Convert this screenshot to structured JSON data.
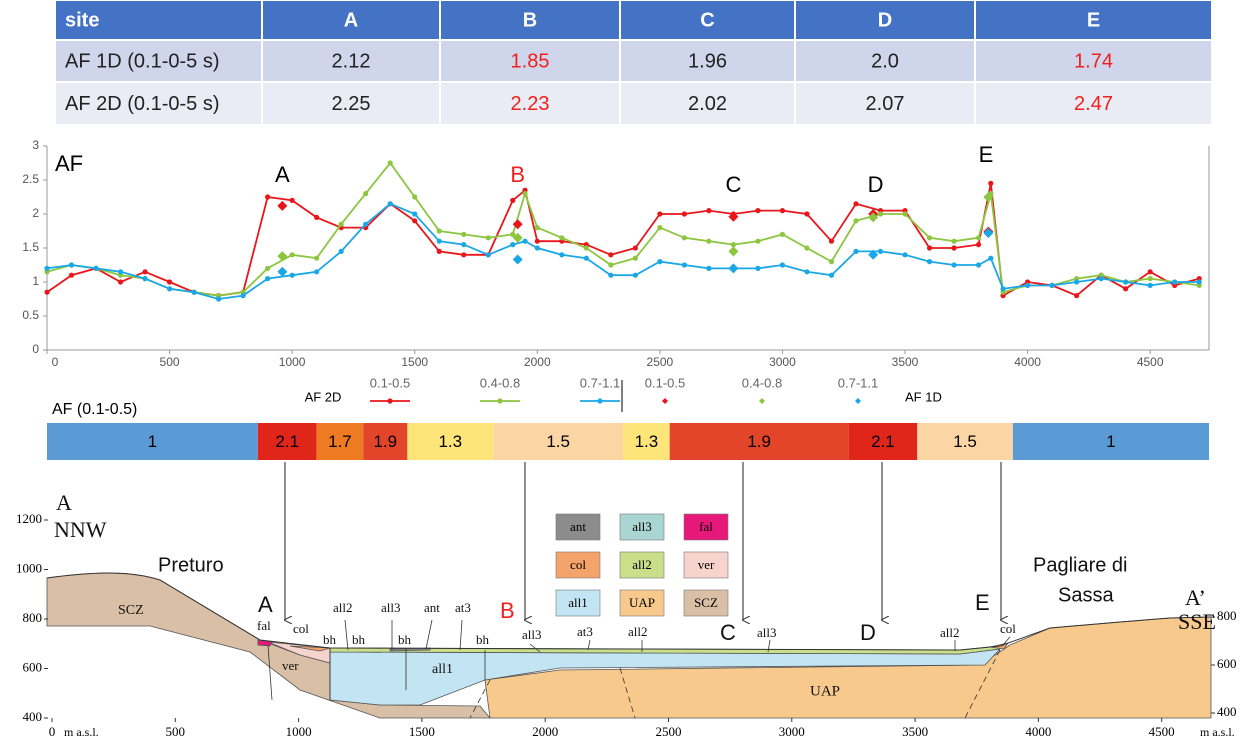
{
  "table": {
    "header": [
      "site",
      "A",
      "B",
      "C",
      "D",
      "E"
    ],
    "rows": [
      [
        "AF 1D (0.1-0-5 s)",
        "2.12",
        "1.85",
        "1.96",
        "2.0",
        "1.74"
      ],
      [
        "AF 2D (0.1-0-5 s)",
        "2.25",
        "2.23",
        "2.02",
        "2.07",
        "2.47"
      ]
    ],
    "highlight": {
      "columns": [
        2,
        5
      ],
      "color": "#f0201c"
    }
  },
  "chart_data": [
    {
      "type": "line",
      "title": "AF",
      "x": [
        0,
        100,
        200,
        300,
        400,
        500,
        600,
        700,
        800,
        900,
        1000,
        1100,
        1200,
        1300,
        1400,
        1500,
        1600,
        1700,
        1800,
        1900,
        1950,
        2000,
        2100,
        2200,
        2300,
        2400,
        2500,
        2600,
        2700,
        2800,
        2900,
        3000,
        3100,
        3200,
        3300,
        3400,
        3500,
        3600,
        3700,
        3800,
        3850,
        3900,
        4000,
        4100,
        4200,
        4300,
        4400,
        4500,
        4600,
        4700
      ],
      "legend_groups": [
        "AF 2D",
        "AF 1D"
      ],
      "series": [
        {
          "name": "0.1-0.5",
          "group": 0,
          "style": "line",
          "color": "#e8161b",
          "values": [
            0.85,
            1.1,
            1.2,
            1.0,
            1.15,
            1.0,
            0.85,
            0.8,
            0.85,
            2.25,
            2.2,
            1.95,
            1.8,
            1.8,
            2.15,
            1.9,
            1.45,
            1.4,
            1.4,
            2.2,
            2.35,
            1.6,
            1.6,
            1.55,
            1.4,
            1.5,
            2.0,
            2.0,
            2.05,
            2.0,
            2.05,
            2.05,
            2.0,
            1.6,
            2.15,
            2.05,
            2.05,
            1.5,
            1.5,
            1.55,
            2.45,
            0.8,
            1.0,
            0.95,
            0.8,
            1.1,
            0.9,
            1.15,
            0.95,
            1.05
          ]
        },
        {
          "name": "0.4-0.8",
          "group": 0,
          "style": "line",
          "color": "#8cc63f",
          "values": [
            1.15,
            1.25,
            1.2,
            1.1,
            1.05,
            0.9,
            0.85,
            0.8,
            0.85,
            1.2,
            1.4,
            1.35,
            1.85,
            2.3,
            2.75,
            2.25,
            1.75,
            1.7,
            1.65,
            1.7,
            2.3,
            1.8,
            1.65,
            1.5,
            1.25,
            1.35,
            1.8,
            1.65,
            1.6,
            1.55,
            1.6,
            1.7,
            1.5,
            1.3,
            1.9,
            2.0,
            2.0,
            1.65,
            1.6,
            1.65,
            2.3,
            0.85,
            0.95,
            0.95,
            1.05,
            1.1,
            1.0,
            1.05,
            1.0,
            0.95
          ]
        },
        {
          "name": "0.7-1.1",
          "group": 0,
          "style": "line",
          "color": "#1aa7e6",
          "values": [
            1.2,
            1.25,
            1.2,
            1.15,
            1.05,
            0.9,
            0.85,
            0.75,
            0.8,
            1.05,
            1.1,
            1.15,
            1.45,
            1.85,
            2.15,
            2.0,
            1.6,
            1.55,
            1.4,
            1.55,
            1.6,
            1.5,
            1.4,
            1.35,
            1.1,
            1.1,
            1.3,
            1.25,
            1.2,
            1.2,
            1.2,
            1.25,
            1.15,
            1.1,
            1.45,
            1.45,
            1.4,
            1.3,
            1.25,
            1.25,
            1.35,
            0.9,
            0.95,
            0.95,
            1.0,
            1.05,
            1.0,
            0.95,
            1.0,
            1.0
          ]
        },
        {
          "name": "0.1-0.5",
          "group": 1,
          "style": "points",
          "color": "#e8161b",
          "x": [
            960,
            1920,
            2800,
            3370,
            3840
          ],
          "values": [
            2.12,
            1.85,
            1.96,
            2.0,
            1.74
          ]
        },
        {
          "name": "0.4-0.8",
          "group": 1,
          "style": "points",
          "color": "#8cc63f",
          "x": [
            960,
            1920,
            2800,
            3370,
            3840
          ],
          "values": [
            1.38,
            1.65,
            1.45,
            1.95,
            2.25
          ]
        },
        {
          "name": "0.7-1.1",
          "group": 1,
          "style": "points",
          "color": "#1aa7e6",
          "x": [
            960,
            1920,
            2800,
            3370,
            3840
          ],
          "values": [
            1.15,
            1.33,
            1.2,
            1.4,
            1.72
          ]
        }
      ],
      "annotations": [
        {
          "text": "A",
          "x": 960,
          "color": "#000000"
        },
        {
          "text": "B",
          "x": 1920,
          "color": "#f0201c"
        },
        {
          "text": "C",
          "x": 2800,
          "color": "#000000"
        },
        {
          "text": "D",
          "x": 3380,
          "color": "#000000"
        },
        {
          "text": "E",
          "x": 3830,
          "color": "#000000"
        }
      ],
      "xlim": [
        0,
        4740
      ],
      "xticks": [
        0,
        500,
        1000,
        1500,
        2000,
        2500,
        3000,
        3500,
        4000,
        4500
      ],
      "ylim": [
        0,
        3
      ],
      "yticks": [
        0,
        0.5,
        1,
        1.5,
        2,
        2.5,
        3
      ]
    },
    {
      "type": "strip",
      "title": "AF (0.1-0.5)",
      "xlim": [
        0,
        4740
      ],
      "edges": [
        0,
        860,
        1100,
        1290,
        1470,
        1820,
        2350,
        2540,
        3270,
        3550,
        3940,
        4740
      ],
      "values": [
        1,
        2.1,
        1.7,
        1.9,
        1.3,
        1.5,
        1.3,
        1.9,
        2.1,
        1.5,
        1
      ],
      "colors": [
        "#5b9bd5",
        "#e0261a",
        "#ee7b22",
        "#e2452a",
        "#fde57a",
        "#fbd5a3",
        "#fde57a",
        "#e2452a",
        "#e0261a",
        "#fbd5a3",
        "#5b9bd5"
      ]
    },
    {
      "type": "section",
      "xlim": [
        0,
        4700
      ],
      "xticks": [
        0,
        500,
        1000,
        1500,
        2000,
        2500,
        3000,
        3500,
        4000,
        4500
      ],
      "x_unit": "m a.s.l.",
      "ylim": [
        400,
        1200
      ],
      "yticks": [
        400,
        600,
        800,
        1000,
        1200
      ],
      "y2lim": [
        400,
        800
      ],
      "y2ticks": [
        400,
        600,
        800
      ],
      "labels": [
        "A",
        "NNW",
        "Preturo",
        "SCZ",
        "A",
        "fal",
        "col",
        "ver",
        "bh",
        "all2",
        "bh",
        "all3",
        "bh",
        "ant",
        "at3",
        "bh",
        {
          "text": "B",
          "color": "#f0201c"
        },
        "all3",
        "at3",
        "all2",
        "C",
        "all3",
        "D",
        "all2",
        "E",
        "col",
        "all1",
        "UAP",
        "Pagliare di",
        "Sassa",
        "A’",
        "SSE"
      ],
      "legend": [
        {
          "label": "ant",
          "color": "#8c8c8c"
        },
        {
          "label": "all3",
          "color": "#a9d5d3"
        },
        {
          "label": "fal",
          "color": "#e6197b"
        },
        {
          "label": "col",
          "color": "#f4a46b"
        },
        {
          "label": "all2",
          "color": "#c9df8a"
        },
        {
          "label": "ver",
          "color": "#f7d3ce"
        },
        {
          "label": "all1",
          "color": "#c3e4f2"
        },
        {
          "label": "UAP",
          "color": "#f7c98c"
        },
        {
          "label": "SCZ",
          "color": "#d9bfa6"
        }
      ]
    }
  ]
}
